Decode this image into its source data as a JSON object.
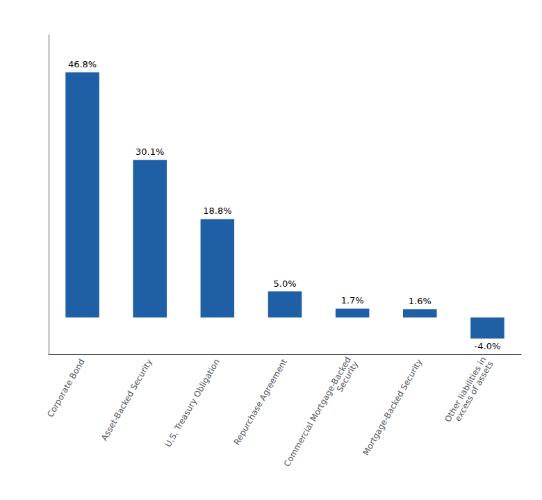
{
  "chart_data": {
    "type": "bar",
    "categories": [
      "Corporate Bond",
      "Asset-Backed Security",
      "U.S. Treasury Obligation",
      "Repurchase Agreement",
      "Commercial Mortgage-Backed\nSecurity",
      "Mortgage-Backed Security",
      "Other liabilities in\nexcess of assets"
    ],
    "values": [
      46.8,
      30.1,
      18.8,
      5.0,
      1.7,
      1.6,
      -4.0
    ],
    "value_labels": [
      "46.8%",
      "30.1%",
      "18.8%",
      "5.0%",
      "1.7%",
      "1.6%",
      "-4.0%"
    ],
    "color": "#1F5FA6",
    "ylim": [
      -7,
      54
    ],
    "grid": false,
    "data_labels": true,
    "tick_labels": "x"
  }
}
